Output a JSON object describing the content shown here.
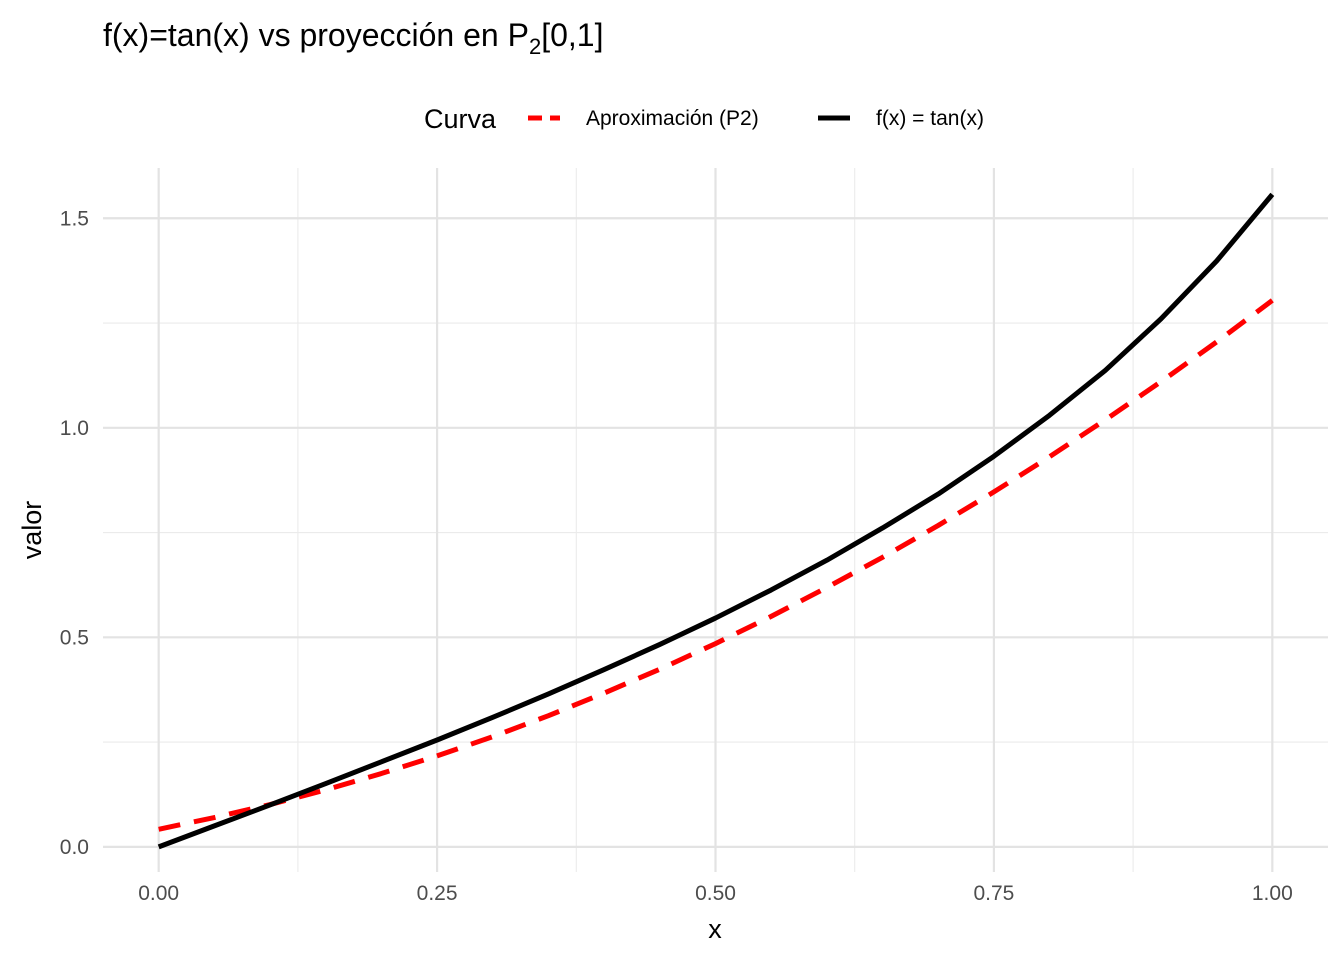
{
  "chart_data": {
    "type": "line",
    "title": {
      "main": "f(x)=tan(x) vs proyección en P",
      "subscript": "2",
      "suffix": "[0,1]"
    },
    "xlabel": "x",
    "ylabel": "valor",
    "xlim": [
      -0.05,
      1.05
    ],
    "ylim": [
      -0.06,
      1.62
    ],
    "x_ticks": [
      0.0,
      0.25,
      0.5,
      0.75,
      1.0
    ],
    "x_tick_labels": [
      "0.00",
      "0.25",
      "0.50",
      "0.75",
      "1.00"
    ],
    "y_ticks": [
      0.0,
      0.5,
      1.0,
      1.5
    ],
    "y_tick_labels": [
      "0.0",
      "0.5",
      "1.0",
      "1.5"
    ],
    "x_minor_ticks": [
      0.125,
      0.375,
      0.625,
      0.875
    ],
    "y_minor_ticks": [
      0.25,
      0.75,
      1.25
    ],
    "grid": true,
    "legend": {
      "title": "Curva",
      "placement": "top"
    },
    "series": [
      {
        "name": "Aproximación (P2)",
        "color": "#ff0000",
        "dash": "dashed",
        "x": [
          0.0,
          0.05,
          0.1,
          0.15,
          0.2,
          0.25,
          0.3,
          0.35,
          0.4,
          0.45,
          0.5,
          0.55,
          0.6,
          0.65,
          0.7,
          0.75,
          0.8,
          0.85,
          0.9,
          0.95,
          1.0
        ],
        "y": [
          0.042,
          0.07,
          0.101,
          0.136,
          0.175,
          0.217,
          0.263,
          0.313,
          0.367,
          0.424,
          0.485,
          0.55,
          0.619,
          0.691,
          0.767,
          0.847,
          0.931,
          1.019,
          1.11,
          1.205,
          1.304
        ]
      },
      {
        "name": "f(x) = tan(x)",
        "color": "#000000",
        "dash": "solid",
        "x": [
          0.0,
          0.05,
          0.1,
          0.15,
          0.2,
          0.25,
          0.3,
          0.35,
          0.4,
          0.45,
          0.5,
          0.55,
          0.6,
          0.65,
          0.7,
          0.75,
          0.8,
          0.85,
          0.9,
          0.95,
          1.0
        ],
        "y": [
          0.0,
          0.05,
          0.1,
          0.151,
          0.203,
          0.255,
          0.309,
          0.365,
          0.423,
          0.483,
          0.546,
          0.613,
          0.684,
          0.761,
          0.842,
          0.932,
          1.03,
          1.137,
          1.26,
          1.398,
          1.557
        ]
      }
    ]
  }
}
